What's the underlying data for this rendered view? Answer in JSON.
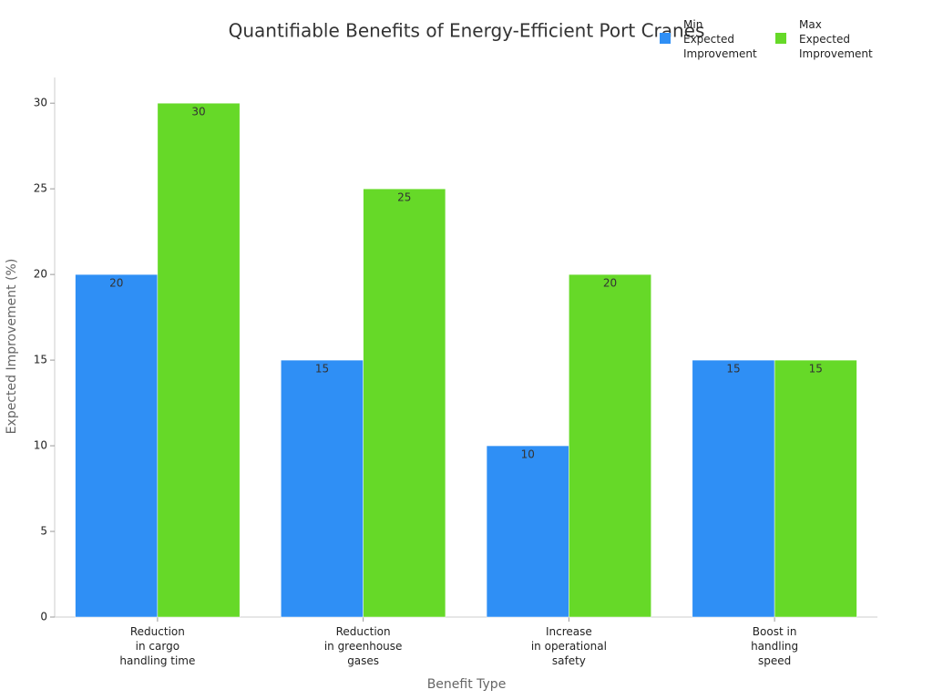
{
  "chart_data": {
    "type": "bar",
    "title": "Quantifiable Benefits of Energy-Efficient Port Cranes",
    "x_label": "Benefit Type",
    "y_label": "Expected Improvement (%)",
    "categories": [
      "Reduction\nin cargo\nhandling time",
      "Reduction\nin greenhouse\ngases",
      "Increase\nin operational\nsafety",
      "Boost in\nhandling\nspeed"
    ],
    "series": [
      {
        "name": "Min\nExpected\nImprovement",
        "color": "#2f8ff5",
        "values": [
          20,
          15,
          10,
          15
        ]
      },
      {
        "name": "Max\nExpected\nImprovement",
        "color": "#66d928",
        "values": [
          30,
          25,
          20,
          15
        ]
      }
    ],
    "ylim": [
      0,
      31.5
    ],
    "yticks": [
      0,
      5,
      10,
      15,
      20,
      25,
      30
    ],
    "grid": false
  }
}
